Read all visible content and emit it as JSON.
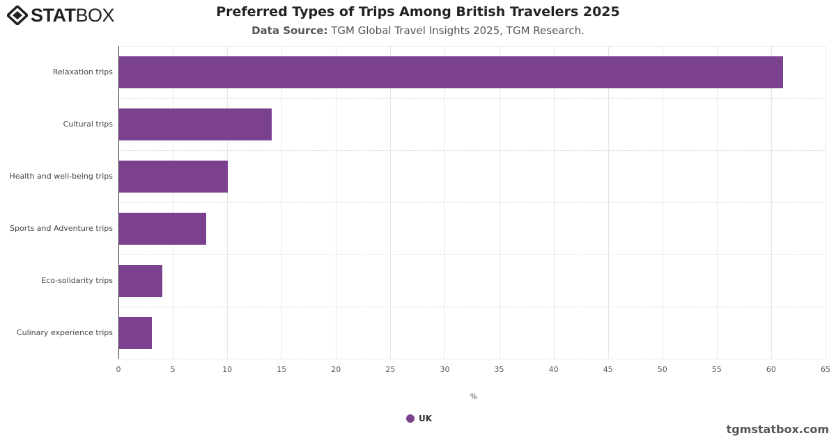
{
  "header": {
    "logo_bold": "STAT",
    "logo_light": "BOX",
    "title": "Preferred Types of Trips Among British Travelers 2025",
    "subtitle_label": "Data Source:",
    "subtitle_text": " TGM Global Travel Insights 2025, TGM Research."
  },
  "footer": {
    "site": "tgmstatbox.com"
  },
  "legend": {
    "label": "UK",
    "color": "#7b418e"
  },
  "chart_data": {
    "type": "bar",
    "orientation": "horizontal",
    "title": "Preferred Types of Trips Among British Travelers 2025",
    "subtitle": "Data Source: TGM Global Travel Insights 2025, TGM Research.",
    "categories": [
      "Relaxation trips",
      "Cultural trips",
      "Health and well-being trips",
      "Sports and Adventure trips",
      "Eco-solidarity trips",
      "Culinary experience trips"
    ],
    "series": [
      {
        "name": "UK",
        "color": "#7b418e",
        "values": [
          61,
          14,
          10,
          8,
          4,
          3
        ]
      }
    ],
    "xlabel": "%",
    "ylabel": "",
    "xlim": [
      0,
      65
    ],
    "xticks": [
      "0",
      "5",
      "10",
      "15",
      "20",
      "25",
      "30",
      "35",
      "40",
      "45",
      "50",
      "55",
      "60",
      "65"
    ],
    "grid": true,
    "legend_position": "bottom"
  }
}
